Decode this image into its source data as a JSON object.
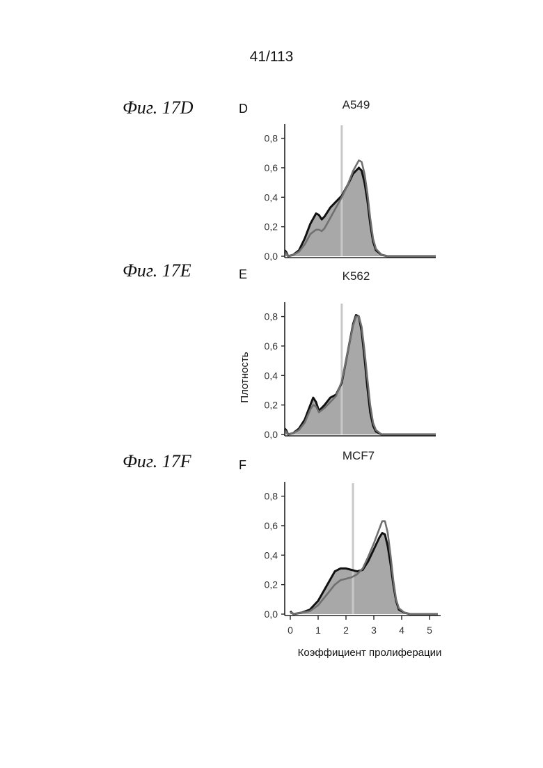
{
  "page_number": "41/113",
  "figure_labels": [
    "Фиг. 17D",
    "Фиг. 17E",
    "Фиг. 17F"
  ],
  "colors": {
    "filled_density": "#a8a8a8",
    "black_line": "#111111",
    "grey_line": "#707070",
    "threshold_line": "#c8c8c8"
  },
  "chart_data": [
    {
      "type": "area",
      "panel_letter": "D",
      "title": "A549",
      "xlabel": "",
      "ylabel": "",
      "xlim": [
        0,
        5.3
      ],
      "ylim": [
        0,
        0.85
      ],
      "y_ticks": [
        "0,0",
        "0,2",
        "0,4",
        "0,6",
        "0,8"
      ],
      "threshold_x": 2.0,
      "series": [
        {
          "style": "black",
          "x": [
            0,
            0.05,
            0.12,
            0.3,
            0.5,
            0.7,
            0.9,
            1.1,
            1.2,
            1.3,
            1.4,
            1.6,
            1.8,
            2.0,
            2.2,
            2.4,
            2.6,
            2.7,
            2.8,
            2.9,
            3.0,
            3.1,
            3.2,
            3.4,
            3.6,
            4.0,
            5.3
          ],
          "y": [
            0.04,
            0.03,
            0.0,
            0.01,
            0.04,
            0.12,
            0.22,
            0.29,
            0.28,
            0.25,
            0.27,
            0.33,
            0.37,
            0.41,
            0.48,
            0.56,
            0.6,
            0.58,
            0.5,
            0.38,
            0.22,
            0.1,
            0.04,
            0.01,
            0.0,
            0.0,
            0.0
          ]
        },
        {
          "style": "grey",
          "x": [
            0,
            0.05,
            0.12,
            0.3,
            0.5,
            0.7,
            0.9,
            1.1,
            1.2,
            1.3,
            1.4,
            1.6,
            1.8,
            2.0,
            2.2,
            2.4,
            2.6,
            2.7,
            2.8,
            2.9,
            3.0,
            3.1,
            3.2,
            3.4,
            3.6,
            4.0,
            5.3
          ],
          "y": [
            0.03,
            0.02,
            0.0,
            0.01,
            0.03,
            0.08,
            0.15,
            0.18,
            0.18,
            0.17,
            0.19,
            0.26,
            0.33,
            0.4,
            0.48,
            0.58,
            0.65,
            0.64,
            0.56,
            0.43,
            0.26,
            0.12,
            0.05,
            0.01,
            0.0,
            0.0,
            0.0
          ]
        }
      ]
    },
    {
      "type": "area",
      "panel_letter": "E",
      "title": "K562",
      "xlabel": "",
      "ylabel": "Плотность",
      "xlim": [
        0,
        5.3
      ],
      "ylim": [
        0,
        0.85
      ],
      "y_ticks": [
        "0,0",
        "0,2",
        "0,4",
        "0,6",
        "0,8"
      ],
      "threshold_x": 2.0,
      "series": [
        {
          "style": "black",
          "x": [
            0,
            0.05,
            0.12,
            0.3,
            0.5,
            0.7,
            0.9,
            1.0,
            1.1,
            1.2,
            1.4,
            1.6,
            1.8,
            2.0,
            2.2,
            2.4,
            2.5,
            2.6,
            2.7,
            2.8,
            2.9,
            3.0,
            3.1,
            3.2,
            3.4,
            3.6,
            5.3
          ],
          "y": [
            0.04,
            0.03,
            0.0,
            0.01,
            0.04,
            0.1,
            0.2,
            0.25,
            0.22,
            0.16,
            0.2,
            0.25,
            0.27,
            0.35,
            0.55,
            0.75,
            0.81,
            0.8,
            0.7,
            0.52,
            0.32,
            0.15,
            0.06,
            0.02,
            0.0,
            0.0,
            0.0
          ]
        },
        {
          "style": "grey",
          "x": [
            0,
            0.05,
            0.12,
            0.3,
            0.5,
            0.7,
            0.9,
            1.0,
            1.1,
            1.2,
            1.4,
            1.6,
            1.8,
            2.0,
            2.2,
            2.4,
            2.5,
            2.6,
            2.7,
            2.8,
            2.9,
            3.0,
            3.1,
            3.2,
            3.4,
            3.6,
            5.3
          ],
          "y": [
            0.03,
            0.02,
            0.0,
            0.01,
            0.03,
            0.08,
            0.17,
            0.2,
            0.19,
            0.15,
            0.18,
            0.22,
            0.26,
            0.36,
            0.55,
            0.74,
            0.8,
            0.8,
            0.73,
            0.57,
            0.38,
            0.2,
            0.08,
            0.03,
            0.0,
            0.0,
            0.0
          ]
        }
      ]
    },
    {
      "type": "area",
      "panel_letter": "F",
      "title": "MCF7",
      "xlabel": "Коэффициент пролиферации",
      "ylabel": "",
      "xlim": [
        -0.2,
        5.4
      ],
      "ylim": [
        0,
        0.85
      ],
      "x_ticks": [
        "0",
        "1",
        "2",
        "3",
        "4",
        "5"
      ],
      "y_ticks": [
        "0,0",
        "0,2",
        "0,4",
        "0,6",
        "0,8"
      ],
      "threshold_x": 2.25,
      "series": [
        {
          "style": "black",
          "x": [
            0,
            0.05,
            0.12,
            0.4,
            0.7,
            1.0,
            1.3,
            1.6,
            1.8,
            2.0,
            2.2,
            2.4,
            2.6,
            2.8,
            3.0,
            3.2,
            3.3,
            3.4,
            3.5,
            3.6,
            3.7,
            3.8,
            3.9,
            4.1,
            4.3,
            5.3
          ],
          "y": [
            0.02,
            0.01,
            0.0,
            0.01,
            0.03,
            0.09,
            0.19,
            0.29,
            0.31,
            0.31,
            0.3,
            0.29,
            0.3,
            0.36,
            0.44,
            0.52,
            0.55,
            0.54,
            0.46,
            0.34,
            0.2,
            0.09,
            0.03,
            0.01,
            0.0,
            0.0
          ]
        },
        {
          "style": "grey",
          "x": [
            0,
            0.05,
            0.12,
            0.4,
            0.7,
            1.0,
            1.3,
            1.6,
            1.8,
            2.0,
            2.2,
            2.4,
            2.6,
            2.8,
            3.0,
            3.2,
            3.3,
            3.4,
            3.5,
            3.6,
            3.7,
            3.8,
            3.9,
            4.1,
            4.3,
            5.3
          ],
          "y": [
            0.01,
            0.01,
            0.0,
            0.01,
            0.02,
            0.06,
            0.13,
            0.2,
            0.23,
            0.24,
            0.25,
            0.27,
            0.31,
            0.39,
            0.48,
            0.58,
            0.63,
            0.63,
            0.55,
            0.4,
            0.23,
            0.1,
            0.04,
            0.01,
            0.0,
            0.0
          ]
        }
      ]
    }
  ]
}
